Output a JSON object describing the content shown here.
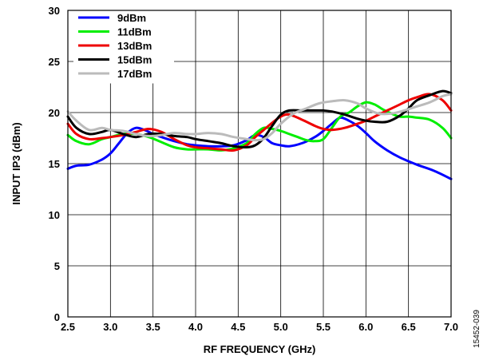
{
  "chart_data": {
    "type": "line",
    "xlabel": "RF FREQUENCY (GHz)",
    "ylabel": "INPUT IP3 (dBm)",
    "xlim": [
      2.5,
      7.0
    ],
    "ylim": [
      0,
      30
    ],
    "xticks": [
      "2.5",
      "3.0",
      "3.5",
      "4.0",
      "4.5",
      "5.0",
      "5.5",
      "6.0",
      "6.5",
      "7.0"
    ],
    "yticks": [
      "0",
      "5",
      "10",
      "15",
      "20",
      "25",
      "30"
    ],
    "grid": true,
    "legend_position": "top-left",
    "figure_id": "15452-039",
    "series": [
      {
        "name": "9dBm",
        "color": "#0000ff",
        "x": [
          2.5,
          2.6,
          2.75,
          2.9,
          3.0,
          3.1,
          3.2,
          3.3,
          3.4,
          3.5,
          3.6,
          3.75,
          3.9,
          4.0,
          4.15,
          4.3,
          4.45,
          4.6,
          4.7,
          4.8,
          4.9,
          5.0,
          5.1,
          5.25,
          5.4,
          5.5,
          5.6,
          5.7,
          5.8,
          5.9,
          6.0,
          6.1,
          6.25,
          6.4,
          6.6,
          6.8,
          7.0
        ],
        "values": [
          14.5,
          14.8,
          14.9,
          15.4,
          16.0,
          17.0,
          18.0,
          18.5,
          18.3,
          17.9,
          17.6,
          17.2,
          16.9,
          16.8,
          16.7,
          16.7,
          16.8,
          17.3,
          17.8,
          17.6,
          17.0,
          16.8,
          16.7,
          17.0,
          17.6,
          18.2,
          18.9,
          19.5,
          19.2,
          18.7,
          18.0,
          17.2,
          16.3,
          15.6,
          14.9,
          14.3,
          13.5
        ]
      },
      {
        "name": "11dBm",
        "color": "#00ee00",
        "x": [
          2.5,
          2.6,
          2.75,
          2.9,
          3.0,
          3.15,
          3.3,
          3.45,
          3.6,
          3.75,
          3.9,
          4.0,
          4.15,
          4.3,
          4.45,
          4.6,
          4.7,
          4.8,
          4.9,
          5.0,
          5.1,
          5.2,
          5.3,
          5.4,
          5.5,
          5.6,
          5.7,
          5.8,
          5.9,
          6.0,
          6.1,
          6.2,
          6.3,
          6.4,
          6.5,
          6.6,
          6.75,
          6.9,
          7.0
        ],
        "values": [
          17.8,
          17.2,
          16.9,
          17.4,
          17.6,
          17.9,
          17.9,
          17.6,
          17.1,
          16.6,
          16.4,
          16.4,
          16.4,
          16.3,
          16.5,
          17.0,
          17.9,
          18.5,
          18.4,
          18.2,
          17.9,
          17.6,
          17.3,
          17.2,
          17.4,
          18.5,
          19.6,
          20.0,
          20.6,
          21.0,
          20.8,
          20.3,
          19.9,
          19.6,
          19.6,
          19.5,
          19.3,
          18.5,
          17.5
        ]
      },
      {
        "name": "13dBm",
        "color": "#ee0000",
        "x": [
          2.5,
          2.6,
          2.75,
          2.9,
          3.0,
          3.15,
          3.3,
          3.45,
          3.6,
          3.75,
          3.9,
          4.0,
          4.15,
          4.3,
          4.45,
          4.6,
          4.7,
          4.8,
          4.9,
          5.0,
          5.1,
          5.25,
          5.4,
          5.5,
          5.6,
          5.75,
          5.9,
          6.0,
          6.1,
          6.25,
          6.4,
          6.5,
          6.6,
          6.75,
          6.9,
          7.0
        ],
        "values": [
          18.9,
          17.9,
          17.4,
          17.5,
          17.6,
          17.8,
          18.1,
          18.4,
          18.1,
          17.4,
          16.8,
          16.6,
          16.5,
          16.4,
          16.3,
          16.8,
          17.6,
          18.3,
          19.0,
          19.6,
          19.8,
          19.3,
          18.7,
          18.4,
          18.3,
          18.5,
          18.9,
          19.2,
          19.6,
          20.2,
          20.8,
          21.2,
          21.5,
          21.8,
          21.2,
          20.2
        ]
      },
      {
        "name": "15dBm",
        "color": "#000000",
        "x": [
          2.5,
          2.6,
          2.75,
          2.9,
          3.0,
          3.15,
          3.3,
          3.45,
          3.6,
          3.75,
          3.9,
          4.0,
          4.15,
          4.3,
          4.45,
          4.6,
          4.7,
          4.8,
          4.9,
          5.0,
          5.1,
          5.25,
          5.4,
          5.5,
          5.6,
          5.75,
          5.9,
          6.0,
          6.1,
          6.25,
          6.4,
          6.5,
          6.6,
          6.75,
          6.9,
          7.0
        ],
        "values": [
          19.6,
          18.5,
          17.9,
          18.1,
          18.3,
          17.9,
          17.6,
          17.9,
          17.9,
          17.7,
          17.6,
          17.4,
          17.2,
          17.0,
          16.7,
          16.6,
          16.8,
          17.5,
          18.7,
          19.8,
          20.2,
          20.2,
          20.2,
          20.2,
          20.1,
          19.8,
          19.4,
          19.2,
          19.1,
          19.1,
          19.7,
          20.4,
          21.2,
          21.7,
          22.1,
          21.9
        ]
      },
      {
        "name": "17dBm",
        "color": "#bbbbbb",
        "x": [
          2.5,
          2.6,
          2.75,
          2.9,
          3.0,
          3.15,
          3.3,
          3.45,
          3.6,
          3.75,
          3.9,
          4.0,
          4.15,
          4.3,
          4.45,
          4.6,
          4.7,
          4.8,
          4.9,
          5.0,
          5.15,
          5.3,
          5.45,
          5.6,
          5.75,
          5.9,
          6.0,
          6.15,
          6.3,
          6.45,
          6.6,
          6.75,
          6.9,
          7.0
        ],
        "values": [
          20.1,
          19.2,
          18.3,
          18.5,
          18.3,
          18.2,
          17.9,
          17.7,
          17.8,
          18.0,
          17.9,
          17.9,
          18.0,
          17.9,
          17.6,
          17.4,
          17.3,
          17.4,
          18.0,
          18.9,
          19.9,
          20.4,
          20.9,
          21.1,
          21.2,
          20.9,
          20.4,
          19.9,
          19.9,
          20.2,
          20.6,
          21.0,
          21.6,
          21.8
        ]
      }
    ]
  }
}
